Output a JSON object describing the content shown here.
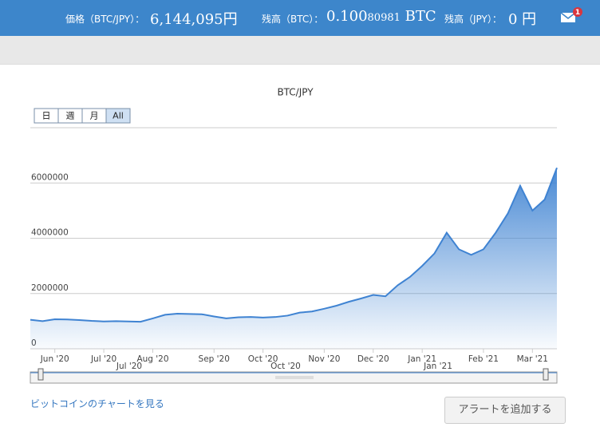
{
  "header": {
    "price_label": "価格（BTC/JPY）：",
    "price_value": "6,144,095円",
    "btc_label": "残高（BTC）：",
    "btc_major": "0.100",
    "btc_minor": "80981",
    "btc_unit": "BTC",
    "jpy_label": "残高（JPY）：",
    "jpy_value": "0 円",
    "notifications": 1
  },
  "chart_data": {
    "type": "area",
    "title": "BTC/JPY",
    "range_buttons": [
      "日",
      "週",
      "月",
      "All"
    ],
    "color": "#3f83d2",
    "categories": [
      null,
      null,
      "Jun '20",
      null,
      null,
      null,
      "Jul '20",
      null,
      null,
      null,
      "Aug '20",
      null,
      null,
      null,
      null,
      "Sep '20",
      null,
      null,
      null,
      "Oct '20",
      null,
      null,
      null,
      null,
      "Nov '20",
      null,
      null,
      null,
      "Dec '20",
      null,
      null,
      null,
      "Jan '21",
      null,
      null,
      null,
      null,
      "Feb '21",
      null,
      null,
      null,
      "Mar '21",
      null,
      null
    ],
    "values": [
      1050000,
      1000000,
      1070000,
      1060000,
      1040000,
      1010000,
      990000,
      1000000,
      990000,
      980000,
      1100000,
      1230000,
      1270000,
      1260000,
      1250000,
      1170000,
      1100000,
      1140000,
      1150000,
      1130000,
      1150000,
      1200000,
      1310000,
      1350000,
      1450000,
      1560000,
      1700000,
      1820000,
      1950000,
      1900000,
      2300000,
      2600000,
      3000000,
      3450000,
      4200000,
      3600000,
      3400000,
      3600000,
      4200000,
      4900000,
      5900000,
      5000000,
      5400000,
      6550000
    ],
    "ylim": [
      0,
      8000000
    ],
    "yticks": [
      0,
      2000000,
      4000000,
      6000000
    ],
    "grid": true
  },
  "navigator": {
    "labels": [
      "Jul '20",
      "Oct '20",
      "Jan '21"
    ]
  },
  "footer": {
    "link": "ビットコインのチャートを見る",
    "button": "アラートを追加する"
  }
}
